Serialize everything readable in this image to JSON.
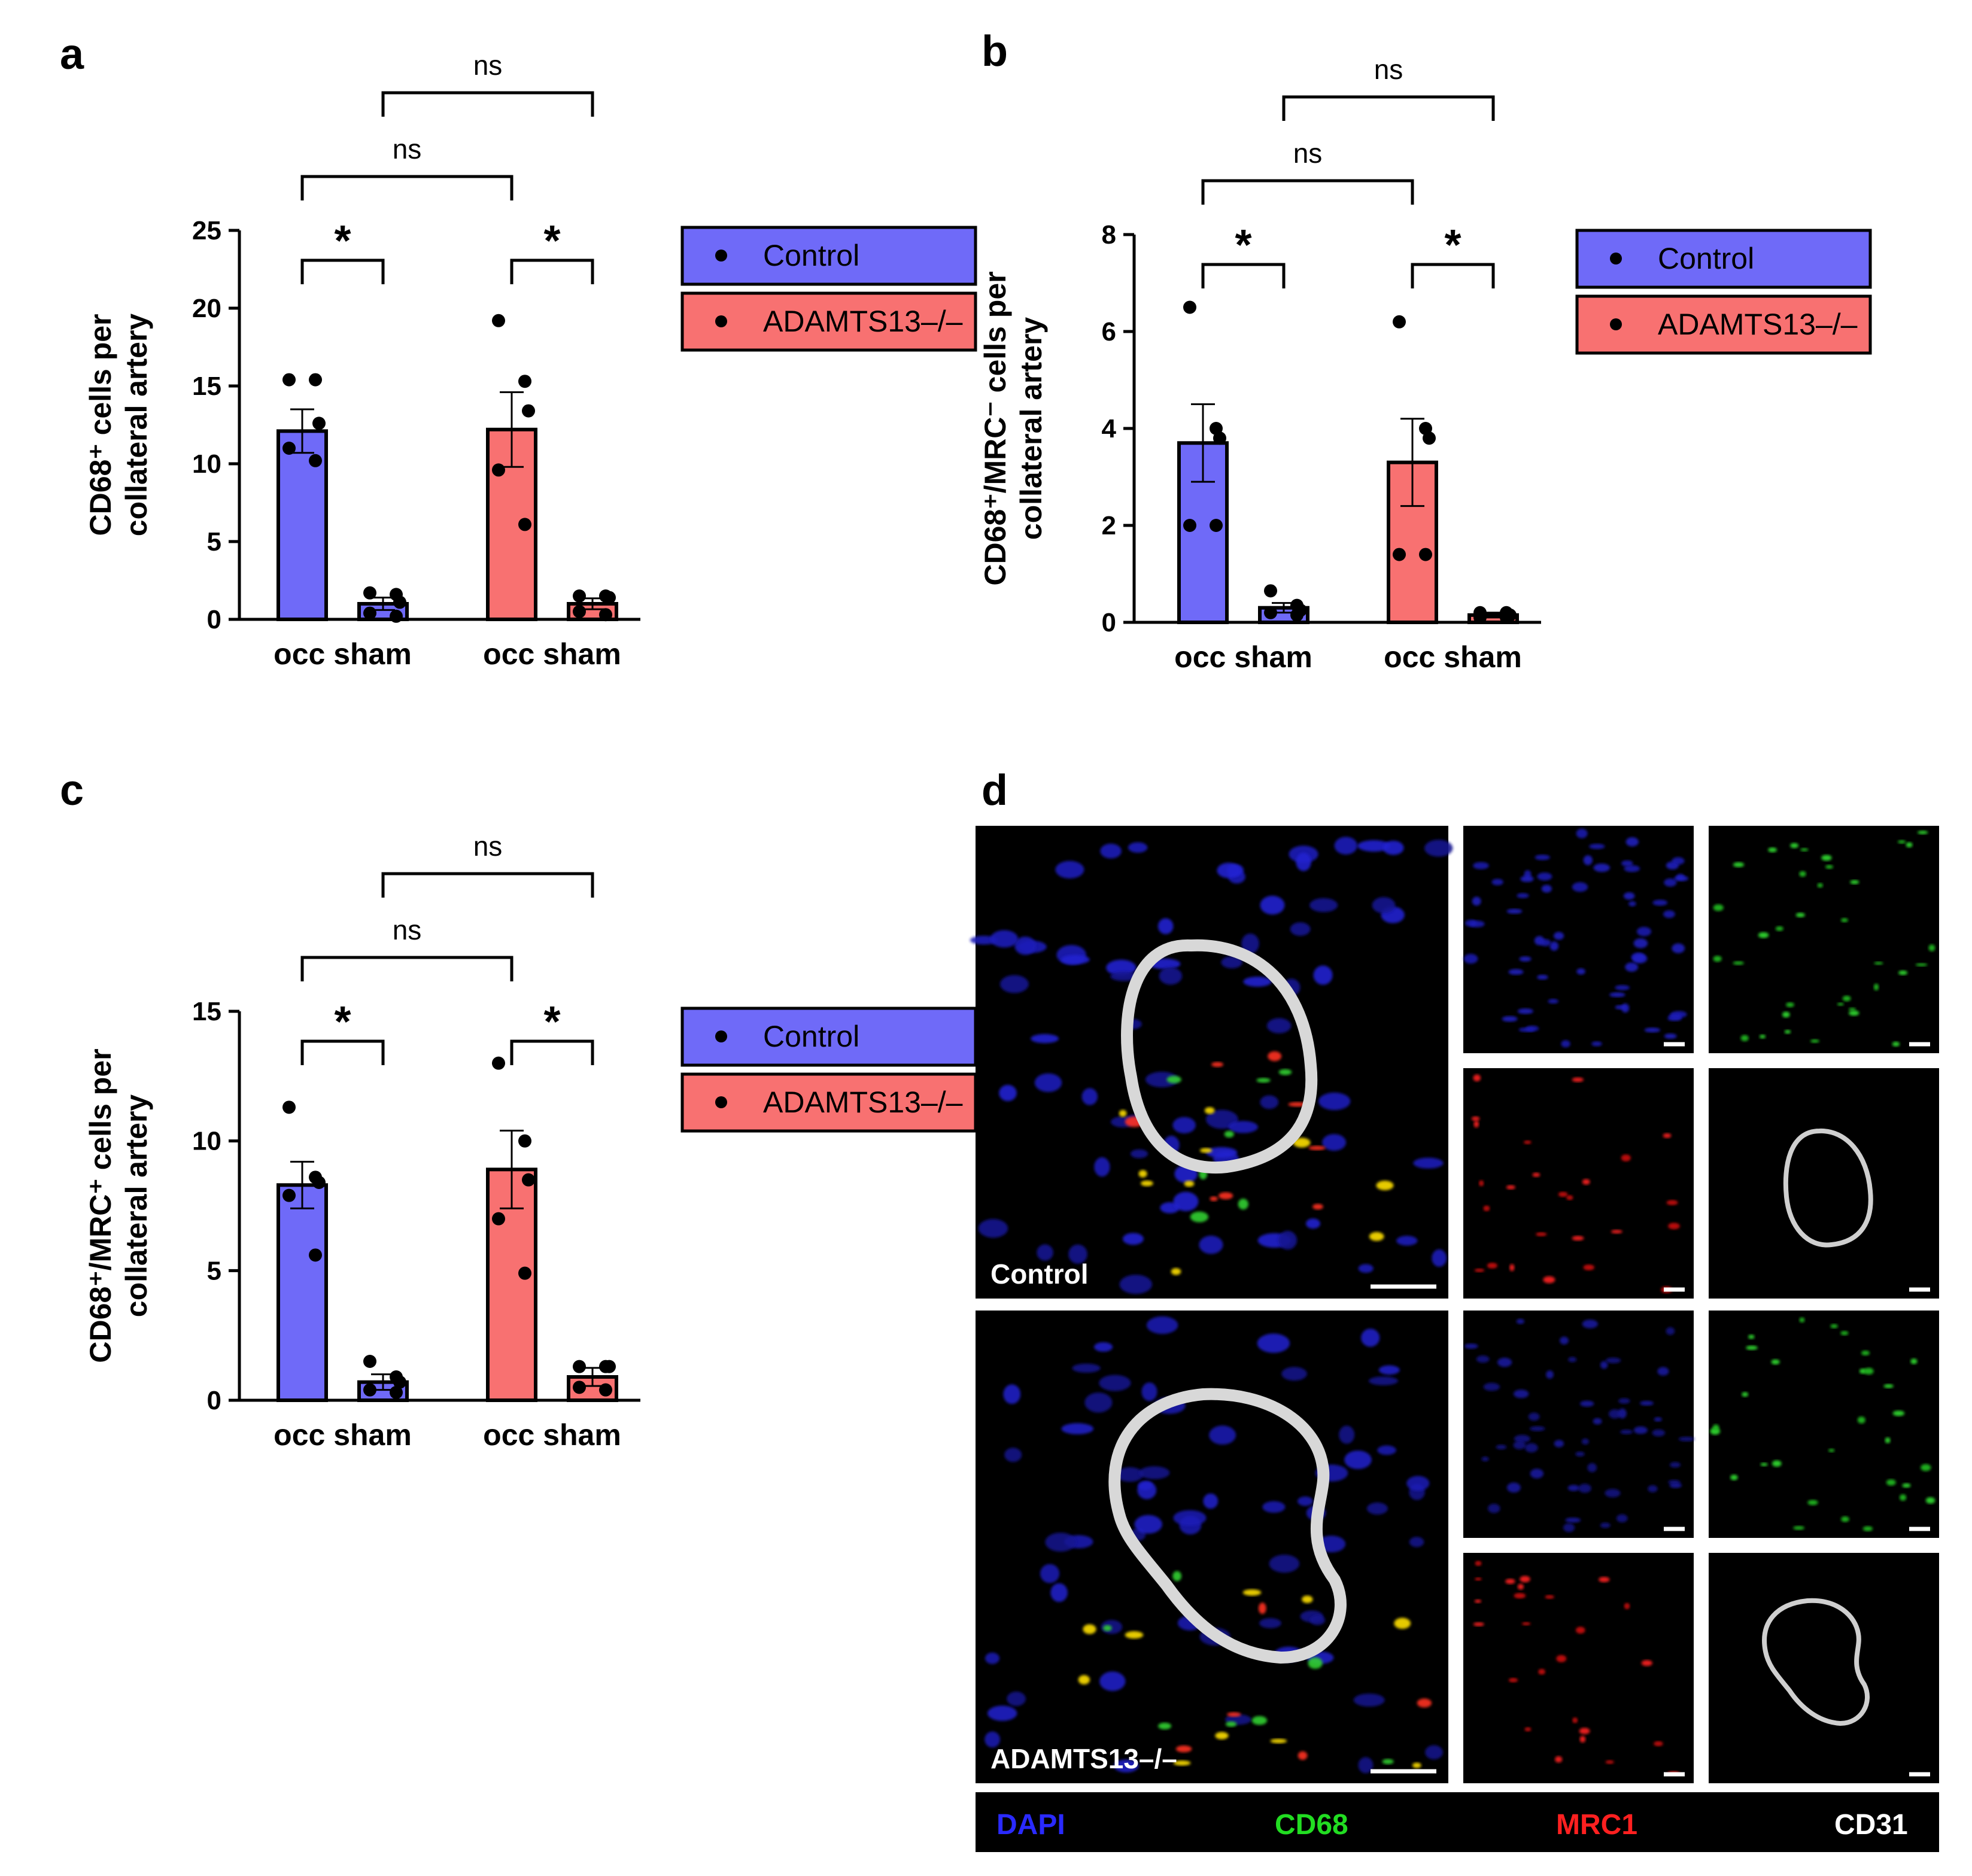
{
  "chart_data": [
    {
      "panel": "a",
      "type": "bar",
      "ylabel_line1": "CD68⁺ cells per",
      "ylabel_line2": "collateral artery",
      "ylim": [
        0,
        25
      ],
      "yticks": [
        0,
        5,
        10,
        15,
        20,
        25
      ],
      "group_labels": [
        "occ sham",
        "occ sham"
      ],
      "categories": [
        "Control occ",
        "Control sham",
        "ADAMTS13–/– occ",
        "ADAMTS13–/– sham"
      ],
      "bar_colors": [
        "#6f6af8",
        "#6f6af8",
        "#f87171",
        "#f87171"
      ],
      "values": [
        12.1,
        1.0,
        12.2,
        1.0
      ],
      "sem": [
        1.4,
        0.4,
        2.4,
        0.35
      ],
      "points": [
        [
          15.4,
          15.4,
          12.6,
          11.0,
          10.2
        ],
        [
          1.7,
          1.6,
          1.1,
          0.4,
          0.2
        ],
        [
          19.2,
          15.3,
          13.4,
          9.6,
          6.1
        ],
        [
          1.5,
          1.5,
          1.4,
          0.5,
          0.3
        ]
      ],
      "annotations": [
        {
          "pair": [
            0,
            1
          ],
          "text": "*"
        },
        {
          "pair": [
            2,
            3
          ],
          "text": "*"
        },
        {
          "pair": [
            0,
            2
          ],
          "text": "ns"
        },
        {
          "pair": [
            1,
            3
          ],
          "text": "ns"
        }
      ],
      "legend": [
        "Control",
        "ADAMTS13–/–"
      ],
      "legend_colors": [
        "#6f6af8",
        "#f87171"
      ],
      "legend_position": "right"
    },
    {
      "panel": "b",
      "type": "bar",
      "ylabel_line1": "CD68⁺/MRC⁻ cells per",
      "ylabel_line2": "collateral artery",
      "ylim": [
        0,
        8
      ],
      "yticks": [
        0,
        2,
        4,
        6,
        8
      ],
      "group_labels": [
        "occ sham",
        "occ sham"
      ],
      "categories": [
        "Control occ",
        "Control sham",
        "ADAMTS13–/– occ",
        "ADAMTS13–/– sham"
      ],
      "bar_colors": [
        "#6f6af8",
        "#6f6af8",
        "#f87171",
        "#f87171"
      ],
      "values": [
        3.7,
        0.3,
        3.3,
        0.15
      ],
      "sem": [
        0.8,
        0.1,
        0.9,
        0.05
      ],
      "points": [
        [
          6.5,
          4.0,
          3.8,
          2.0,
          2.0
        ],
        [
          0.65,
          0.35,
          0.25,
          0.2,
          0.15
        ],
        [
          6.2,
          4.0,
          3.8,
          1.4,
          1.4
        ],
        [
          0.2,
          0.2,
          0.15,
          0.1,
          0.1
        ]
      ],
      "annotations": [
        {
          "pair": [
            0,
            1
          ],
          "text": "*"
        },
        {
          "pair": [
            2,
            3
          ],
          "text": "*"
        },
        {
          "pair": [
            0,
            2
          ],
          "text": "ns"
        },
        {
          "pair": [
            1,
            3
          ],
          "text": "ns"
        }
      ],
      "legend": [
        "Control",
        "ADAMTS13–/–"
      ],
      "legend_colors": [
        "#6f6af8",
        "#f87171"
      ],
      "legend_position": "right"
    },
    {
      "panel": "c",
      "type": "bar",
      "ylabel_line1": "CD68⁺/MRC⁺ cells per",
      "ylabel_line2": "collateral artery",
      "ylim": [
        0,
        15
      ],
      "yticks": [
        0,
        5,
        10,
        15
      ],
      "group_labels": [
        "occ sham",
        "occ sham"
      ],
      "categories": [
        "Control occ",
        "Control sham",
        "ADAMTS13–/– occ",
        "ADAMTS13–/– sham"
      ],
      "bar_colors": [
        "#6f6af8",
        "#6f6af8",
        "#f87171",
        "#f87171"
      ],
      "values": [
        8.3,
        0.7,
        8.9,
        0.9
      ],
      "sem": [
        0.9,
        0.3,
        1.5,
        0.35
      ],
      "points": [
        [
          11.3,
          8.6,
          8.4,
          7.9,
          5.6
        ],
        [
          1.5,
          0.9,
          0.7,
          0.4,
          0.3
        ],
        [
          13.0,
          10.0,
          8.5,
          7.0,
          4.9
        ],
        [
          1.3,
          1.3,
          1.3,
          0.5,
          0.4
        ]
      ],
      "annotations": [
        {
          "pair": [
            0,
            1
          ],
          "text": "*"
        },
        {
          "pair": [
            2,
            3
          ],
          "text": "*"
        },
        {
          "pair": [
            0,
            2
          ],
          "text": "ns"
        },
        {
          "pair": [
            1,
            3
          ],
          "text": "ns"
        }
      ],
      "legend": [
        "Control",
        "ADAMTS13–/–"
      ],
      "legend_colors": [
        "#6f6af8",
        "#f87171"
      ],
      "legend_position": "right"
    }
  ],
  "panel_d": {
    "label": "d",
    "row_labels": [
      "Control",
      "ADAMTS13–/–"
    ],
    "channels": [
      {
        "name": "DAPI",
        "color": "#2a2aff"
      },
      {
        "name": "CD68",
        "color": "#22dd22"
      },
      {
        "name": "MRC1",
        "color": "#ff2020"
      },
      {
        "name": "CD31",
        "color": "#ffffff"
      }
    ]
  }
}
